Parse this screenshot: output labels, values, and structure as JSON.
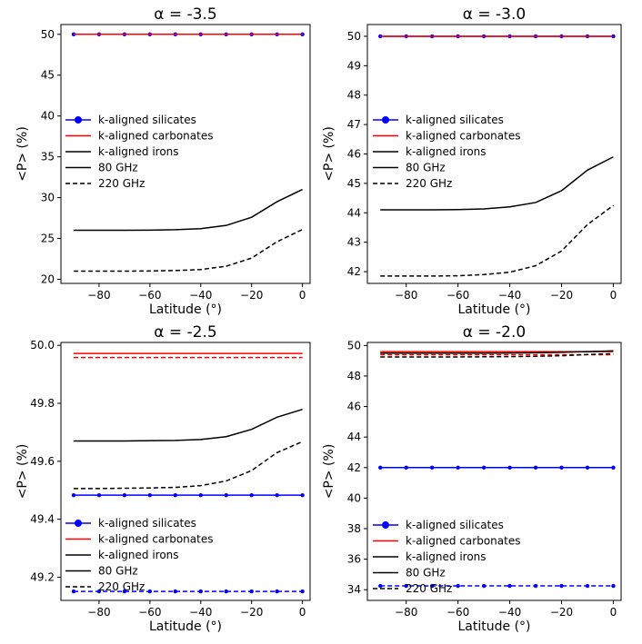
{
  "chart_data": [
    {
      "type": "line",
      "title": "α = -3.5",
      "xlabel": "Latitude (°)",
      "ylabel": "<P> (%)",
      "xlim": [
        -95,
        3
      ],
      "ylim": [
        19.5,
        51.2
      ],
      "xticks": [
        -80,
        -60,
        -40,
        -20,
        0
      ],
      "yticks": [
        20,
        25,
        30,
        35,
        40,
        45,
        50
      ],
      "x": [
        -90,
        -80,
        -70,
        -60,
        -50,
        -40,
        -30,
        -20,
        -10,
        0
      ],
      "legend": {
        "location": "center-left",
        "entries": [
          "k-aligned silicates",
          "k-aligned carbonates",
          "k-aligned irons",
          "80 GHz",
          "220 GHz"
        ]
      },
      "series": [
        {
          "name": "k-aligned silicates 80 GHz",
          "color": "#0000ff",
          "style": "solid",
          "marker": true,
          "values": [
            50,
            50,
            50,
            50,
            50,
            50,
            50,
            50,
            50,
            50
          ]
        },
        {
          "name": "k-aligned carbonates 80 GHz",
          "color": "#ff0000",
          "style": "solid",
          "marker": false,
          "values": [
            50,
            50,
            50,
            50,
            50,
            50,
            50,
            50,
            50,
            50
          ]
        },
        {
          "name": "k-aligned irons 80 GHz",
          "color": "#000000",
          "style": "solid",
          "marker": false,
          "values": [
            26.0,
            26.0,
            26.0,
            26.02,
            26.07,
            26.2,
            26.6,
            27.6,
            29.5,
            31.0
          ]
        },
        {
          "name": "k-aligned irons 220 GHz",
          "color": "#000000",
          "style": "dashed",
          "marker": false,
          "values": [
            21.0,
            21.0,
            21.0,
            21.02,
            21.07,
            21.2,
            21.6,
            22.6,
            24.6,
            26.1
          ]
        }
      ]
    },
    {
      "type": "line",
      "title": "α = -3.0",
      "xlabel": "Latitude (°)",
      "ylabel": "<P> (%)",
      "xlim": [
        -95,
        3
      ],
      "ylim": [
        41.6,
        50.4
      ],
      "xticks": [
        -80,
        -60,
        -40,
        -20,
        0
      ],
      "yticks": [
        42,
        43,
        44,
        45,
        46,
        47,
        48,
        49,
        50
      ],
      "x": [
        -90,
        -80,
        -70,
        -60,
        -50,
        -40,
        -30,
        -20,
        -10,
        0
      ],
      "legend": {
        "location": "center-left",
        "entries": [
          "k-aligned silicates",
          "k-aligned carbonates",
          "k-aligned irons",
          "80 GHz",
          "220 GHz"
        ]
      },
      "series": [
        {
          "name": "k-aligned silicates 80 GHz",
          "color": "#0000ff",
          "style": "solid",
          "marker": true,
          "values": [
            50,
            50,
            50,
            50,
            50,
            50,
            50,
            50,
            50,
            50
          ]
        },
        {
          "name": "k-aligned carbonates 80 GHz",
          "color": "#ff0000",
          "style": "solid",
          "marker": false,
          "values": [
            50,
            50,
            50,
            50,
            50,
            50,
            50,
            50,
            50,
            50
          ]
        },
        {
          "name": "k-aligned irons 80 GHz",
          "color": "#000000",
          "style": "solid",
          "marker": false,
          "values": [
            44.1,
            44.1,
            44.1,
            44.11,
            44.13,
            44.2,
            44.35,
            44.75,
            45.45,
            45.9
          ]
        },
        {
          "name": "k-aligned irons 220 GHz",
          "color": "#000000",
          "style": "dashed",
          "marker": false,
          "values": [
            41.85,
            41.85,
            41.85,
            41.86,
            41.9,
            41.98,
            42.2,
            42.7,
            43.6,
            44.25
          ]
        }
      ]
    },
    {
      "type": "line",
      "title": "α = -2.5",
      "xlabel": "Latitude (°)",
      "ylabel": "<P> (%)",
      "xlim": [
        -95,
        3
      ],
      "ylim": [
        49.12,
        50.01
      ],
      "xticks": [
        -80,
        -60,
        -40,
        -20,
        0
      ],
      "yticks": [
        49.2,
        49.4,
        49.6,
        49.8,
        50.0
      ],
      "ytick_labels": [
        "49.2",
        "49.4",
        "49.6",
        "49.8",
        "50.0"
      ],
      "x": [
        -90,
        -80,
        -70,
        -60,
        -50,
        -40,
        -30,
        -20,
        -10,
        0
      ],
      "legend": {
        "location": "lower-left",
        "entries": [
          "k-aligned silicates",
          "k-aligned carbonates",
          "k-aligned irons",
          "80 GHz",
          "220 GHz"
        ]
      },
      "series": [
        {
          "name": "k-aligned silicates 80 GHz",
          "color": "#0000ff",
          "style": "solid",
          "marker": true,
          "values": [
            49.483,
            49.483,
            49.483,
            49.483,
            49.483,
            49.483,
            49.483,
            49.483,
            49.483,
            49.483
          ]
        },
        {
          "name": "k-aligned silicates 220 GHz",
          "color": "#0000ff",
          "style": "dashed",
          "marker": true,
          "values": [
            49.151,
            49.151,
            49.151,
            49.151,
            49.151,
            49.151,
            49.151,
            49.151,
            49.151,
            49.151
          ]
        },
        {
          "name": "k-aligned carbonates 80 GHz",
          "color": "#ff0000",
          "style": "solid",
          "marker": false,
          "values": [
            49.972,
            49.972,
            49.972,
            49.972,
            49.972,
            49.972,
            49.972,
            49.972,
            49.972,
            49.972
          ]
        },
        {
          "name": "k-aligned carbonates 220 GHz",
          "color": "#ff0000",
          "style": "dashed",
          "marker": false,
          "values": [
            49.958,
            49.958,
            49.958,
            49.958,
            49.958,
            49.958,
            49.958,
            49.958,
            49.958,
            49.958
          ]
        },
        {
          "name": "k-aligned irons 80 GHz",
          "color": "#000000",
          "style": "solid",
          "marker": false,
          "values": [
            49.67,
            49.67,
            49.67,
            49.671,
            49.672,
            49.675,
            49.685,
            49.71,
            49.752,
            49.779
          ]
        },
        {
          "name": "k-aligned irons 220 GHz",
          "color": "#000000",
          "style": "dashed",
          "marker": false,
          "values": [
            49.506,
            49.506,
            49.507,
            49.508,
            49.51,
            49.516,
            49.532,
            49.568,
            49.63,
            49.668
          ]
        }
      ]
    },
    {
      "type": "line",
      "title": "α = -2.0",
      "xlabel": "Latitude (°)",
      "ylabel": "<P> (%)",
      "xlim": [
        -95,
        3
      ],
      "ylim": [
        33.3,
        50.2
      ],
      "xticks": [
        -80,
        -60,
        -40,
        -20,
        0
      ],
      "yticks": [
        34,
        36,
        38,
        40,
        42,
        44,
        46,
        48,
        50
      ],
      "x": [
        -90,
        -80,
        -70,
        -60,
        -50,
        -40,
        -30,
        -20,
        -10,
        0
      ],
      "legend": {
        "location": "lower-left",
        "entries": [
          "k-aligned silicates",
          "k-aligned carbonates",
          "k-aligned irons",
          "80 GHz",
          "220 GHz"
        ]
      },
      "series": [
        {
          "name": "k-aligned silicates 80 GHz",
          "color": "#0000ff",
          "style": "solid",
          "marker": true,
          "values": [
            42.0,
            42.0,
            42.0,
            42.0,
            42.0,
            42.0,
            42.0,
            42.0,
            42.0,
            42.0
          ]
        },
        {
          "name": "k-aligned silicates 220 GHz",
          "color": "#0000ff",
          "style": "dashed",
          "marker": true,
          "values": [
            34.25,
            34.25,
            34.25,
            34.25,
            34.25,
            34.25,
            34.25,
            34.25,
            34.25,
            34.25
          ]
        },
        {
          "name": "k-aligned carbonates 80 GHz",
          "color": "#ff0000",
          "style": "solid",
          "marker": false,
          "values": [
            49.6,
            49.6,
            49.6,
            49.6,
            49.6,
            49.6,
            49.6,
            49.6,
            49.6,
            49.6
          ]
        },
        {
          "name": "k-aligned carbonates 220 GHz",
          "color": "#ff0000",
          "style": "dashed",
          "marker": false,
          "values": [
            49.4,
            49.4,
            49.4,
            49.4,
            49.4,
            49.4,
            49.4,
            49.4,
            49.4,
            49.4
          ]
        },
        {
          "name": "k-aligned irons 80 GHz",
          "color": "#000000",
          "style": "solid",
          "marker": false,
          "values": [
            49.5,
            49.5,
            49.5,
            49.5,
            49.5,
            49.51,
            49.52,
            49.55,
            49.6,
            49.65
          ]
        },
        {
          "name": "k-aligned irons 220 GHz",
          "color": "#000000",
          "style": "dashed",
          "marker": false,
          "values": [
            49.25,
            49.25,
            49.25,
            49.25,
            49.26,
            49.27,
            49.29,
            49.33,
            49.41,
            49.46
          ]
        }
      ]
    }
  ]
}
